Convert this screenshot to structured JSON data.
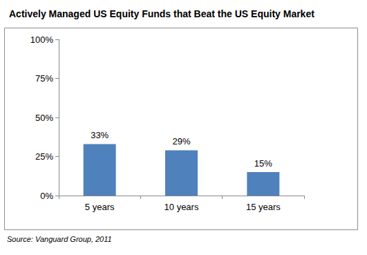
{
  "chart_data": {
    "type": "bar",
    "title": "Actively Managed US Equity Funds that Beat the US Equity Market",
    "categories": [
      "5 years",
      "10 years",
      "15 years"
    ],
    "values": [
      33,
      29,
      15
    ],
    "value_labels": [
      "33%",
      "29%",
      "15%"
    ],
    "color": "#4f81bd",
    "ylim": [
      0,
      100
    ],
    "yticks": [
      {
        "value": 0,
        "label": "0%"
      },
      {
        "value": 25,
        "label": "25%"
      },
      {
        "value": 50,
        "label": "50%"
      },
      {
        "value": 75,
        "label": "75%"
      },
      {
        "value": 100,
        "label": "100%"
      }
    ],
    "grid": false,
    "data_labels": true,
    "annotation": "Source: Vanguard Group, 2011"
  }
}
